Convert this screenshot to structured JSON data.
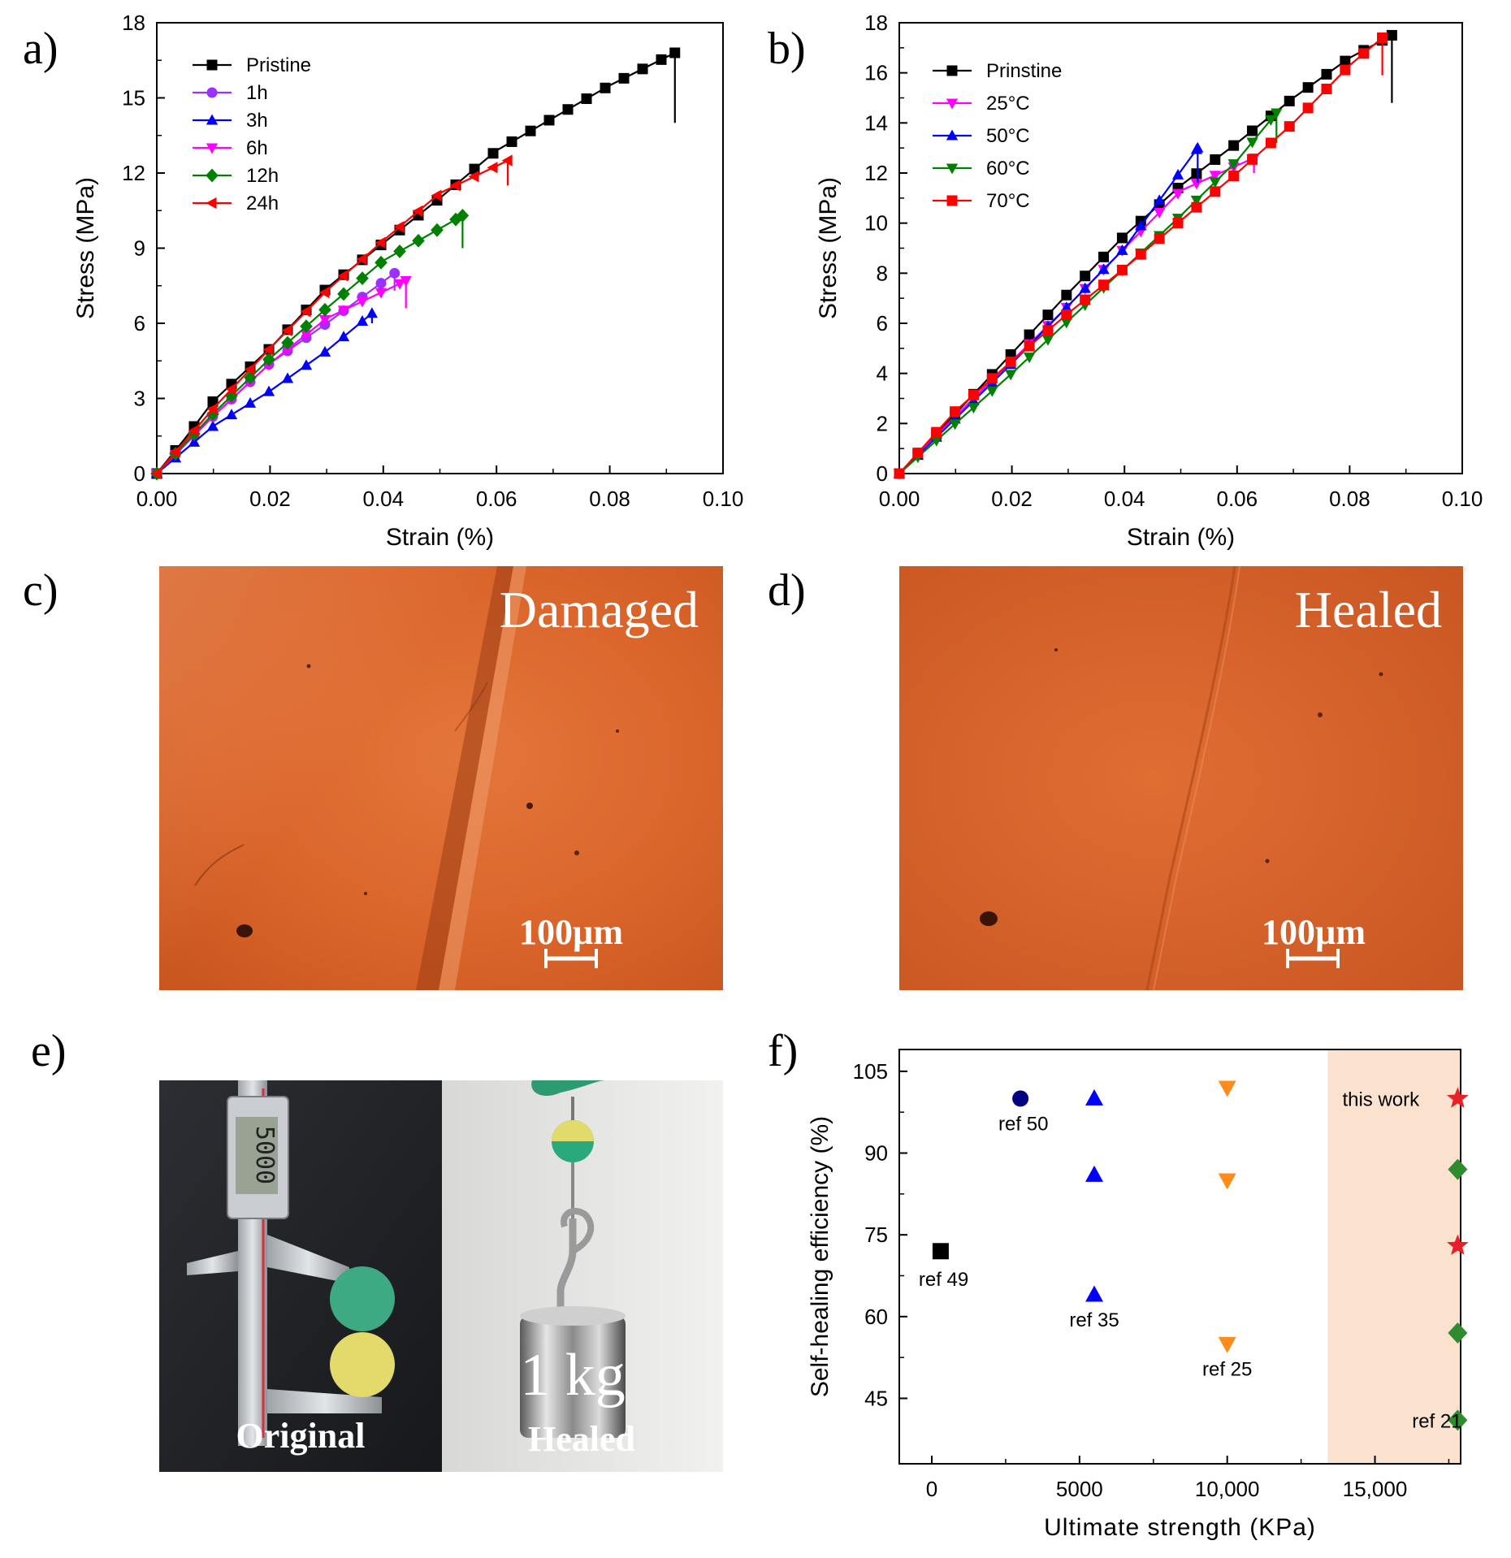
{
  "panel_labels": [
    "a)",
    "b)",
    "c)",
    "d)",
    "e)",
    "f)"
  ],
  "chart_data": [
    {
      "type": "line",
      "panel": "a)",
      "xlabel": "Strain (%)",
      "ylabel": "Stress (MPa)",
      "xlim": [
        0,
        0.1
      ],
      "ylim": [
        0,
        18
      ],
      "xticks": [
        "0.00",
        "0.02",
        "0.04",
        "0.06",
        "0.08",
        "0.10"
      ],
      "yticks": [
        "0",
        "3",
        "6",
        "9",
        "12",
        "15",
        "18"
      ],
      "legend": "top-left",
      "series": [
        {
          "name": "Pristine",
          "color": "#000000",
          "marker": "square",
          "end_x": 0.0915,
          "end_y": 16.8,
          "drop_y": 14.0,
          "points": [
            [
              0,
              0
            ],
            [
              0.005,
              1.4
            ],
            [
              0.01,
              2.9
            ],
            [
              0.02,
              5.0
            ],
            [
              0.03,
              7.4
            ],
            [
              0.04,
              9.2
            ],
            [
              0.05,
              11.0
            ],
            [
              0.06,
              12.9
            ],
            [
              0.07,
              14.2
            ],
            [
              0.08,
              15.5
            ],
            [
              0.0915,
              16.8
            ]
          ]
        },
        {
          "name": "1h",
          "color": "#9b30ff",
          "marker": "circle",
          "end_x": 0.042,
          "end_y": 8.0,
          "drop_y": 7.3,
          "points": [
            [
              0,
              0
            ],
            [
              0.01,
              2.3
            ],
            [
              0.02,
              4.4
            ],
            [
              0.03,
              6.0
            ],
            [
              0.042,
              8.0
            ]
          ]
        },
        {
          "name": "3h",
          "color": "#0000ff",
          "marker": "triangle-up",
          "end_x": 0.038,
          "end_y": 6.4,
          "drop_y": 6.0,
          "points": [
            [
              0,
              0
            ],
            [
              0.01,
              1.9
            ],
            [
              0.02,
              3.3
            ],
            [
              0.03,
              4.9
            ],
            [
              0.038,
              6.4
            ]
          ]
        },
        {
          "name": "6h",
          "color": "#ff00ff",
          "marker": "triangle-down",
          "end_x": 0.044,
          "end_y": 7.7,
          "drop_y": 6.6,
          "points": [
            [
              0,
              0
            ],
            [
              0.01,
              2.3
            ],
            [
              0.02,
              4.4
            ],
            [
              0.03,
              6.2
            ],
            [
              0.044,
              7.7
            ]
          ]
        },
        {
          "name": "12h",
          "color": "#008000",
          "marker": "diamond",
          "end_x": 0.054,
          "end_y": 10.3,
          "drop_y": 9.0,
          "points": [
            [
              0,
              0
            ],
            [
              0.01,
              2.4
            ],
            [
              0.02,
              4.6
            ],
            [
              0.03,
              6.6
            ],
            [
              0.04,
              8.5
            ],
            [
              0.054,
              10.3
            ]
          ]
        },
        {
          "name": "24h",
          "color": "#ff0000",
          "marker": "triangle-left",
          "end_x": 0.062,
          "end_y": 12.5,
          "drop_y": 11.5,
          "points": [
            [
              0,
              0
            ],
            [
              0.01,
              2.6
            ],
            [
              0.02,
              5.0
            ],
            [
              0.03,
              7.3
            ],
            [
              0.04,
              9.3
            ],
            [
              0.05,
              11.2
            ],
            [
              0.062,
              12.5
            ]
          ]
        }
      ]
    },
    {
      "type": "line",
      "panel": "b)",
      "xlabel": "Strain (%)",
      "ylabel": "Stress (MPa)",
      "xlim": [
        0,
        0.1
      ],
      "ylim": [
        0,
        18
      ],
      "xticks": [
        "0.00",
        "0.02",
        "0.04",
        "0.06",
        "0.08",
        "0.10"
      ],
      "yticks": [
        "0",
        "2",
        "4",
        "6",
        "8",
        "10",
        "12",
        "14",
        "16",
        "18"
      ],
      "legend": "top-left",
      "series": [
        {
          "name": "Prinstine",
          "color": "#000000",
          "marker": "square",
          "end_x": 0.0875,
          "end_y": 17.5,
          "drop_y": 14.8,
          "points": [
            [
              0,
              0
            ],
            [
              0.01,
              2.4
            ],
            [
              0.02,
              4.8
            ],
            [
              0.03,
              7.2
            ],
            [
              0.04,
              9.5
            ],
            [
              0.05,
              11.5
            ],
            [
              0.06,
              13.2
            ],
            [
              0.07,
              15.0
            ],
            [
              0.08,
              16.6
            ],
            [
              0.0875,
              17.5
            ]
          ]
        },
        {
          "name": "25°C",
          "color": "#ff00ff",
          "marker": "triangle-down",
          "end_x": 0.063,
          "end_y": 12.6,
          "drop_y": 12.0,
          "points": [
            [
              0,
              0
            ],
            [
              0.01,
              2.3
            ],
            [
              0.02,
              4.5
            ],
            [
              0.03,
              6.7
            ],
            [
              0.04,
              9.0
            ],
            [
              0.05,
              11.3
            ],
            [
              0.063,
              12.6
            ]
          ]
        },
        {
          "name": "50°C",
          "color": "#0000ff",
          "marker": "triangle-up",
          "end_x": 0.053,
          "end_y": 13.0,
          "drop_y": 11.6,
          "points": [
            [
              0,
              0
            ],
            [
              0.01,
              2.2
            ],
            [
              0.02,
              4.4
            ],
            [
              0.03,
              6.7
            ],
            [
              0.04,
              9.0
            ],
            [
              0.053,
              13.0
            ]
          ]
        },
        {
          "name": "60°C",
          "color": "#008000",
          "marker": "triangle-down",
          "end_x": 0.067,
          "end_y": 14.4,
          "drop_y": 13.2,
          "points": [
            [
              0,
              0
            ],
            [
              0.01,
              2.0
            ],
            [
              0.02,
              4.0
            ],
            [
              0.03,
              6.1
            ],
            [
              0.04,
              8.2
            ],
            [
              0.05,
              10.3
            ],
            [
              0.06,
              12.5
            ],
            [
              0.067,
              14.4
            ]
          ]
        },
        {
          "name": "70°C",
          "color": "#ff0000",
          "marker": "square",
          "end_x": 0.0858,
          "end_y": 17.4,
          "drop_y": 15.9,
          "points": [
            [
              0,
              0
            ],
            [
              0.01,
              2.5
            ],
            [
              0.02,
              4.5
            ],
            [
              0.03,
              6.4
            ],
            [
              0.04,
              8.2
            ],
            [
              0.05,
              10.1
            ],
            [
              0.06,
              12.0
            ],
            [
              0.07,
              14.0
            ],
            [
              0.08,
              16.3
            ],
            [
              0.0858,
              17.4
            ]
          ]
        }
      ]
    },
    {
      "type": "scatter",
      "panel": "f)",
      "xlabel": "Ultimate strength (KPa)",
      "ylabel": "Self-healing efficiency (%)",
      "xlim": [
        -1100,
        17900
      ],
      "ylim": [
        33,
        109
      ],
      "xticks": [
        "0",
        "5000",
        "10,000",
        "15,000"
      ],
      "yticks": [
        "45",
        "60",
        "75",
        "90",
        "105"
      ],
      "highlight_region_x": [
        13400,
        17900
      ],
      "points": [
        {
          "x": 300,
          "y": 72,
          "marker": "square",
          "color": "#000000"
        },
        {
          "x": 3000,
          "y": 100,
          "marker": "circle",
          "color": "#000080"
        },
        {
          "x": 5500,
          "y": 100,
          "marker": "triangle-up",
          "color": "#0000ff"
        },
        {
          "x": 5500,
          "y": 86,
          "marker": "triangle-up",
          "color": "#0000ff"
        },
        {
          "x": 5500,
          "y": 64,
          "marker": "triangle-up",
          "color": "#0000ff"
        },
        {
          "x": 10000,
          "y": 102,
          "marker": "triangle-down",
          "color": "#ff8c1a"
        },
        {
          "x": 10000,
          "y": 85,
          "marker": "triangle-down",
          "color": "#ff8c1a"
        },
        {
          "x": 10000,
          "y": 55,
          "marker": "triangle-down",
          "color": "#ff8c1a"
        },
        {
          "x": 17800,
          "y": 100,
          "marker": "star",
          "color": "#e8202a"
        },
        {
          "x": 17800,
          "y": 73,
          "marker": "star",
          "color": "#e8202a"
        },
        {
          "x": 17800,
          "y": 87,
          "marker": "diamond",
          "color": "#2e8b2e"
        },
        {
          "x": 17800,
          "y": 57,
          "marker": "diamond",
          "color": "#2e8b2e"
        },
        {
          "x": 17800,
          "y": 41,
          "marker": "diamond",
          "color": "#2e8b2e"
        }
      ],
      "annotations": [
        {
          "text": "ref 49",
          "x": 400,
          "y": 67
        },
        {
          "text": "ref 50",
          "x": 3100,
          "y": 95.5
        },
        {
          "text": "ref 35",
          "x": 5500,
          "y": 59.5
        },
        {
          "text": "ref 25",
          "x": 10000,
          "y": 50.5
        },
        {
          "text": "ref 21",
          "x": 17100,
          "y": 41
        },
        {
          "text": "this work",
          "x": 15200,
          "y": 100
        }
      ]
    }
  ],
  "micrographs": [
    {
      "panel": "c)",
      "caption": "Damaged",
      "scale_bar": "100µm"
    },
    {
      "panel": "d)",
      "caption": "Healed",
      "scale_bar": "100µm"
    }
  ],
  "photos": {
    "panel": "e)",
    "left_caption": "Original",
    "right_caption": "Healed",
    "weight_label": "1 kg",
    "caliper_reading": "5000"
  }
}
